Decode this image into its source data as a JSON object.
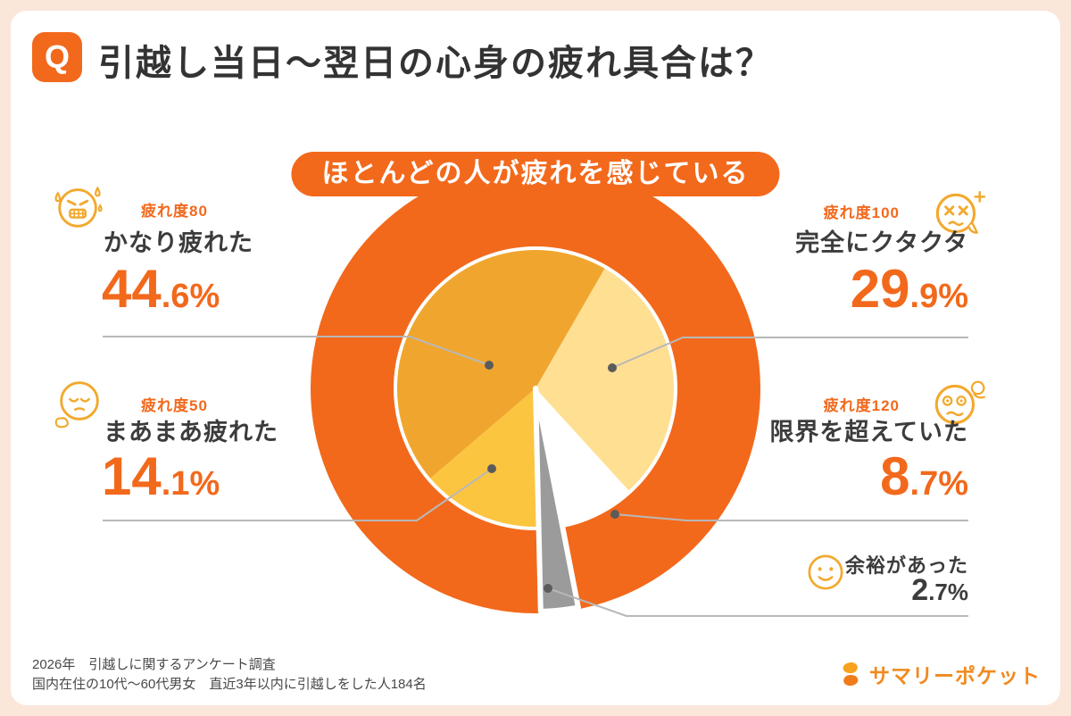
{
  "header": {
    "q_badge": "Q",
    "title": "引越し当日〜翌日の心身の疲れ具合は？"
  },
  "banner": {
    "text": "ほとんどの人が疲れを感じている"
  },
  "callouts": {
    "kanari": {
      "fatigue_label": "疲れ度80",
      "name": "かなり疲れた",
      "value_int": "44",
      "value_sub": ".6%"
    },
    "maamaa": {
      "fatigue_label": "疲れ度50",
      "name": "まあまあ疲れた",
      "value_int": "14",
      "value_sub": ".1%"
    },
    "kutakuta": {
      "fatigue_label": "疲れ度100",
      "name": "完全にクタクタ",
      "value_int": "29",
      "value_sub": ".9%"
    },
    "genkai": {
      "fatigue_label": "疲れ度120",
      "name": "限界を超えていた",
      "value_int": "8",
      "value_sub": ".7%"
    },
    "yoyuu": {
      "name": "余裕があった",
      "value_int": "2",
      "value_sub": ".7%"
    }
  },
  "chart_data": {
    "type": "pie",
    "title": "引越し当日〜翌日の心身の疲れ具合は？",
    "banner": "ほとんどの人が疲れを感じている",
    "unit": "%",
    "direction": "clockwise",
    "start_angle_deg": 30,
    "ring_color": "#F2691C",
    "slices": [
      {
        "label": "完全にクタクタ",
        "fatigue_level": "疲れ度100",
        "value": 29.9,
        "color": "#FFDF92"
      },
      {
        "label": "限界を超えていた",
        "fatigue_level": "疲れ度120",
        "value": 8.7,
        "color": "#FFFFFF"
      },
      {
        "label": "余裕があった",
        "fatigue_level": null,
        "value": 2.7,
        "color": "#9B9B9B",
        "extended": true
      },
      {
        "label": "まあまあ疲れた",
        "fatigue_level": "疲れ度50",
        "value": 14.1,
        "color": "#FCC540"
      },
      {
        "label": "かなり疲れた",
        "fatigue_level": "疲れ度80",
        "value": 44.6,
        "color": "#F0A62E"
      }
    ]
  },
  "footer": {
    "line1": "2026年　引越しに関するアンケート調査",
    "line2": "国内在住の10代〜60代男女　直近3年以内に引越しをした人184名",
    "logo_text": "サマリーポケット"
  },
  "colors": {
    "accent_orange": "#F2691C",
    "page_background": "#FAE7DA",
    "dark_text": "#3C3C3C",
    "leader_line": "#B8B8B8"
  }
}
